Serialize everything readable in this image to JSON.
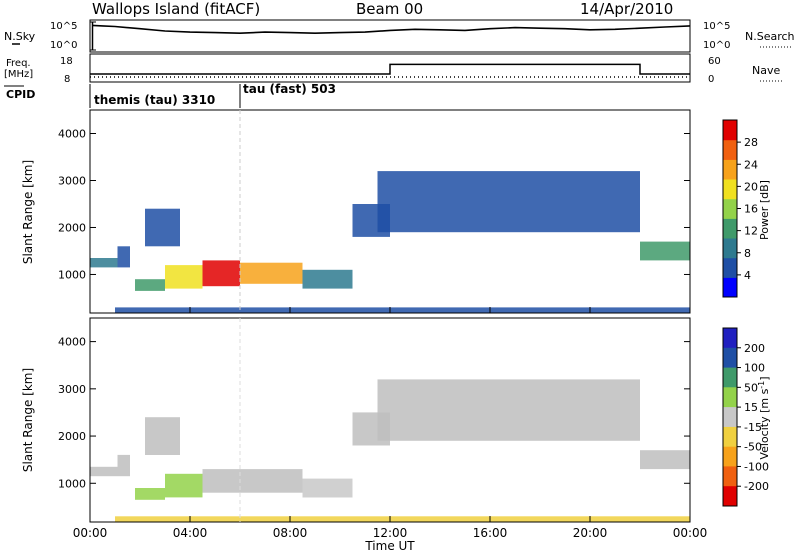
{
  "header": {
    "site": "Wallops Island (fitACF)",
    "beam": "Beam 00",
    "date": "14/Apr/2010"
  },
  "panel_labels": {
    "nsky": "N.Sky",
    "freq": "Freq.",
    "mhz": "[MHz]",
    "cpid": "CPID",
    "nsearch": "N.Search",
    "nave": "Nave"
  },
  "cpid_entries": [
    "themis (tau) 3310",
    "tau (fast) 503"
  ],
  "axes": {
    "ylabel": "Slant Range [km]",
    "xlabel": "Time UT",
    "x_ticks": [
      "00:00",
      "04:00",
      "08:00",
      "12:00",
      "16:00",
      "20:00",
      "00:00"
    ],
    "y_ticks": [
      "1000",
      "2000",
      "3000",
      "4000"
    ],
    "nsky_ticks": [
      "10^5",
      "10^0"
    ],
    "nsearch_ticks": [
      "10^5",
      "10^0"
    ],
    "freq_ticks": [
      "18",
      "8"
    ],
    "nave_ticks": [
      "60",
      "0"
    ]
  },
  "colors": {
    "power_scale": [
      "#0000ff",
      "#1f4fa5",
      "#2e7a8f",
      "#3f9a6a",
      "#93d24a",
      "#f0e020",
      "#f7a21b",
      "#f06010",
      "#e00000"
    ],
    "velocity_scale": [
      "#e00000",
      "#f06010",
      "#f7a21b",
      "#f0d040",
      "#c8c8c8",
      "#93d24a",
      "#3f9a6a",
      "#1f4fa5",
      "#2020c0"
    ],
    "ground_scatter": "#bebebe"
  },
  "chart_data": [
    {
      "type": "line",
      "name": "n-sky-search",
      "x_range_hours": [
        0,
        24
      ],
      "x": [
        0.1,
        0.5,
        1,
        2,
        3,
        4,
        5,
        6,
        7,
        8,
        9,
        10,
        11,
        12,
        13,
        14,
        15,
        16,
        17,
        18,
        19,
        20,
        21,
        22,
        23,
        24
      ],
      "nsky_log10": [
        4.4,
        4.3,
        4.2,
        3.8,
        3.4,
        3.2,
        3.1,
        3.0,
        3.2,
        3.1,
        3.0,
        3.1,
        3.2,
        3.5,
        3.7,
        3.6,
        3.5,
        3.8,
        4.0,
        3.9,
        3.8,
        3.6,
        3.7,
        3.9,
        4.1,
        4.3
      ],
      "ylim_log10": [
        0,
        5
      ]
    },
    {
      "type": "line",
      "name": "frequency-nave",
      "x": [
        0,
        12,
        12,
        22,
        22,
        24
      ],
      "frequency_mhz": [
        10.5,
        10.5,
        14.5,
        14.5,
        10.5,
        10.5
      ],
      "nave": [
        10,
        10,
        10,
        10,
        10,
        10
      ],
      "freq_ylim": [
        8,
        18
      ],
      "nave_ylim": [
        0,
        60
      ]
    },
    {
      "type": "table",
      "name": "cpid",
      "switch_time_hours": 6.0,
      "entries": [
        {
          "label": "themis (tau) 3310",
          "start": 0,
          "end": 6
        },
        {
          "label": "tau (fast) 503",
          "start": 6,
          "end": 24
        }
      ]
    },
    {
      "type": "heatmap",
      "title": "Power [dB]",
      "xlabel": "Time UT",
      "ylabel": "Slant Range [km]",
      "xlim": [
        0,
        24
      ],
      "ylim": [
        180,
        4500
      ],
      "colorbar_ticks": [
        "4",
        "8",
        "12",
        "16",
        "20",
        "24",
        "28"
      ],
      "color_range": [
        0,
        30
      ],
      "regions": [
        {
          "t0": 0.0,
          "t1": 1.1,
          "r0": 1150,
          "r1": 1350,
          "value": 8
        },
        {
          "t0": 1.1,
          "t1": 1.6,
          "r0": 1150,
          "r1": 1600,
          "value": 6
        },
        {
          "t0": 1.8,
          "t1": 3.0,
          "r0": 650,
          "r1": 900,
          "value": 12
        },
        {
          "t0": 3.0,
          "t1": 4.5,
          "r0": 700,
          "r1": 1200,
          "value": 18
        },
        {
          "t0": 4.5,
          "t1": 6.0,
          "r0": 750,
          "r1": 1300,
          "value": 27
        },
        {
          "t0": 6.0,
          "t1": 8.5,
          "r0": 800,
          "r1": 1250,
          "value": 20
        },
        {
          "t0": 8.5,
          "t1": 10.5,
          "r0": 700,
          "r1": 1100,
          "value": 8
        },
        {
          "t0": 2.2,
          "t1": 3.6,
          "r0": 1600,
          "r1": 2400,
          "value": 5
        },
        {
          "t0": 10.5,
          "t1": 12.0,
          "r0": 1800,
          "r1": 2500,
          "value": 6
        },
        {
          "t0": 11.5,
          "t1": 22.0,
          "r0": 1900,
          "r1": 3200,
          "value": 5
        },
        {
          "t0": 22.0,
          "t1": 24.0,
          "r0": 1300,
          "r1": 1700,
          "value": 12
        },
        {
          "t0": 1.0,
          "t1": 24.0,
          "r0": 180,
          "r1": 300,
          "value": 6
        }
      ]
    },
    {
      "type": "heatmap",
      "title": "Velocity [m s^-1]",
      "xlabel": "Time UT",
      "ylabel": "Slant Range [km]",
      "xlim": [
        0,
        24
      ],
      "ylim": [
        180,
        4500
      ],
      "colorbar_ticks": [
        "200",
        "100",
        "50",
        "15",
        "-15",
        "-50",
        "-100",
        "-200"
      ],
      "color_range": [
        -250,
        250
      ],
      "regions": [
        {
          "t0": 0.0,
          "t1": 1.1,
          "r0": 1150,
          "r1": 1350,
          "value": 0
        },
        {
          "t0": 1.1,
          "t1": 1.6,
          "r0": 1150,
          "r1": 1600,
          "value": 0
        },
        {
          "t0": 1.8,
          "t1": 3.0,
          "r0": 650,
          "r1": 900,
          "value": 30
        },
        {
          "t0": 3.0,
          "t1": 4.5,
          "r0": 700,
          "r1": 1200,
          "value": 30
        },
        {
          "t0": 4.5,
          "t1": 8.5,
          "r0": 800,
          "r1": 1300,
          "value": 0
        },
        {
          "t0": 8.5,
          "t1": 10.5,
          "r0": 700,
          "r1": 1100,
          "value": 20
        },
        {
          "t0": 2.2,
          "t1": 3.6,
          "r0": 1600,
          "r1": 2400,
          "value": 0
        },
        {
          "t0": 10.5,
          "t1": 12.0,
          "r0": 1800,
          "r1": 2500,
          "value": 0
        },
        {
          "t0": 11.5,
          "t1": 22.0,
          "r0": 1900,
          "r1": 3200,
          "value": 0
        },
        {
          "t0": 22.0,
          "t1": 24.0,
          "r0": 1300,
          "r1": 1700,
          "value": 0
        },
        {
          "t0": 1.0,
          "t1": 24.0,
          "r0": 180,
          "r1": 300,
          "value": -40
        }
      ]
    }
  ]
}
